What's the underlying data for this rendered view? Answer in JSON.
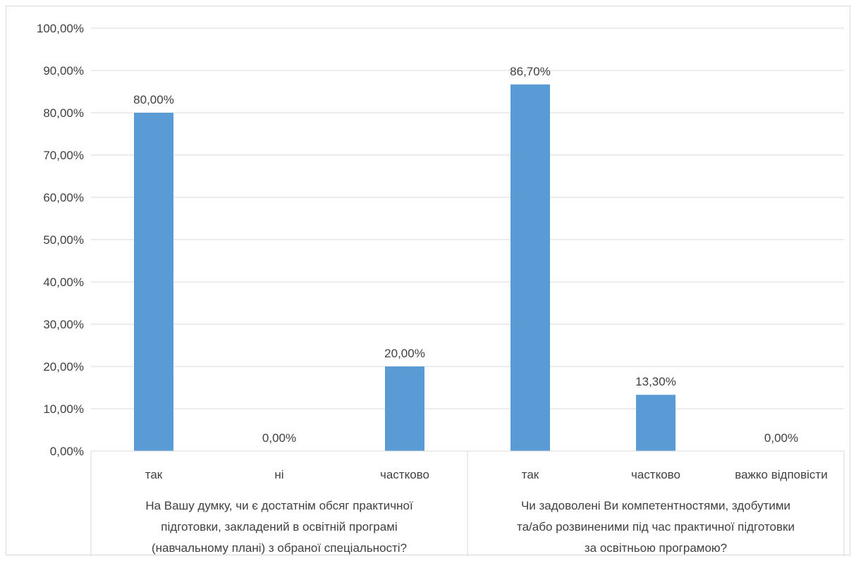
{
  "chart_data": {
    "type": "bar",
    "ylim": [
      0,
      100
    ],
    "y_ticks": [
      0,
      10,
      20,
      30,
      40,
      50,
      60,
      70,
      80,
      90,
      100
    ],
    "y_tick_labels": [
      "0,00%",
      "10,00%",
      "20,00%",
      "30,00%",
      "40,00%",
      "50,00%",
      "60,00%",
      "70,00%",
      "80,00%",
      "90,00%",
      "100,00%"
    ],
    "grid": true,
    "bar_color": "#5b9bd5",
    "groups": [
      {
        "label_lines": [
          "На Вашу думку, чи є достатнім обсяг практичної",
          "підготовки, закладений в освітній програмі",
          "(навчальному плані) з обраної спеціальності?"
        ],
        "categories": [
          "так",
          "ні",
          "частково"
        ],
        "values": [
          80.0,
          0.0,
          20.0
        ],
        "data_labels": [
          "80,00%",
          "0,00%",
          "20,00%"
        ]
      },
      {
        "label_lines": [
          "Чи задоволені Ви компетентностями, здобутими",
          "та/або розвиненими під час практичної підготовки",
          "за освітньою програмою?"
        ],
        "categories": [
          "так",
          "частково",
          "важко відповісти"
        ],
        "values": [
          86.7,
          13.3,
          0.0
        ],
        "data_labels": [
          "86,70%",
          "13,30%",
          "0,00%"
        ]
      }
    ]
  }
}
